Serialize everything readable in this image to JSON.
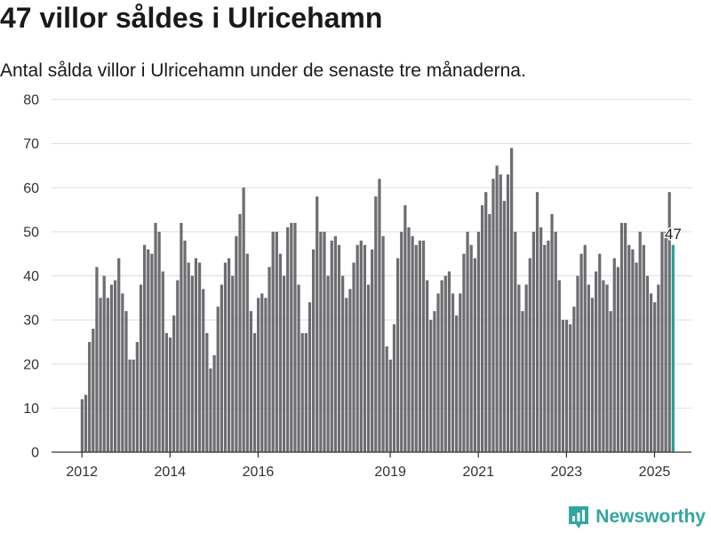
{
  "header": {
    "title": "47 villor såldes i Ulricehamn",
    "subtitle": "Antal sålda villor i Ulricehamn under de senaste tre månaderna."
  },
  "brand": {
    "name": "Newsworthy"
  },
  "colors": {
    "bar": "#6d6c70",
    "highlight": "#2a9d96",
    "brand": "#33a6a0"
  },
  "chart_data": {
    "type": "bar",
    "title": "47 villor såldes i Ulricehamn",
    "subtitle": "Antal sålda villor i Ulricehamn under de senaste tre månaderna.",
    "xlabel": "",
    "ylabel": "",
    "ylim": [
      0,
      80
    ],
    "yticks": [
      0,
      10,
      20,
      30,
      40,
      50,
      60,
      70,
      80
    ],
    "xticks": [
      "2012",
      "2014",
      "2016",
      "2019",
      "2021",
      "2023",
      "2025"
    ],
    "grid": true,
    "start": "2012-01",
    "frequency": "monthly",
    "highlight_label": "47",
    "values": [
      12,
      13,
      25,
      28,
      42,
      35,
      40,
      35,
      38,
      39,
      44,
      36,
      32,
      21,
      21,
      25,
      38,
      47,
      46,
      45,
      52,
      50,
      41,
      27,
      26,
      31,
      39,
      52,
      48,
      43,
      40,
      44,
      43,
      37,
      27,
      19,
      22,
      33,
      38,
      43,
      44,
      40,
      49,
      54,
      60,
      45,
      32,
      27,
      35,
      36,
      35,
      42,
      50,
      50,
      45,
      40,
      51,
      52,
      52,
      38,
      27,
      27,
      34,
      46,
      58,
      50,
      50,
      40,
      48,
      49,
      47,
      40,
      35,
      37,
      43,
      47,
      48,
      47,
      38,
      46,
      58,
      62,
      49,
      24,
      21,
      29,
      44,
      50,
      56,
      51,
      49,
      47,
      48,
      48,
      39,
      30,
      32,
      36,
      39,
      40,
      41,
      36,
      31,
      36,
      45,
      50,
      47,
      44,
      50,
      56,
      59,
      54,
      62,
      65,
      63,
      57,
      63,
      69,
      50,
      38,
      32,
      38,
      44,
      50,
      59,
      51,
      47,
      48,
      54,
      50,
      39,
      30,
      30,
      29,
      33,
      40,
      45,
      47,
      38,
      35,
      41,
      45,
      39,
      38,
      32,
      44,
      42,
      52,
      52,
      47,
      46,
      43,
      50,
      47,
      40,
      36,
      34,
      38,
      50,
      50,
      59,
      47
    ]
  }
}
